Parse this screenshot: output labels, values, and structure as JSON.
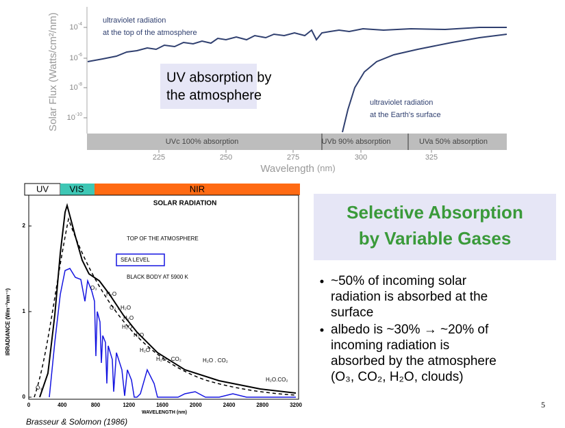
{
  "top_figure": {
    "y_axis_label": "Solar Flux (Watts/cm²/nm)",
    "y_ticks": [
      {
        "base": "10",
        "exp": "-4"
      },
      {
        "base": "10",
        "exp": "-6"
      },
      {
        "base": "10",
        "exp": "-8"
      },
      {
        "base": "10",
        "exp": "-10"
      }
    ],
    "x_ticks": [
      "225",
      "250",
      "275",
      "300",
      "325"
    ],
    "x_axis_label": "Wavelength",
    "x_axis_unit": "(nm)",
    "bands": [
      "UVc 100% absorption",
      "UVb 90% absorption",
      "UVa 50% absorption"
    ],
    "annotation_top": [
      "ultraviolet radiation",
      "at the top of the atmosphere"
    ],
    "annotation_surface": [
      "ultraviolet radiation",
      "at the Earth's surface"
    ],
    "callout": [
      "UV absorption by",
      "the atmosphere"
    ]
  },
  "bottom_figure": {
    "spectrum_bar": [
      "UV",
      "VIS",
      "NIR"
    ],
    "title": "SOLAR RADIATION",
    "y_axis_label": "IRRADIANCE (Wm⁻²nm⁻¹)",
    "y_ticks": [
      "0",
      "1",
      "2"
    ],
    "x_ticks": [
      "0",
      "400",
      "800",
      "1200",
      "1600",
      "2000",
      "2400",
      "2800",
      "3200"
    ],
    "x_axis_label": "WAVELENGTH (nm)",
    "legend": [
      "TOP OF THE ATMOSPHERE",
      "SEA LEVEL",
      "BLACK BODY AT 5900 K"
    ],
    "absorbers": [
      "O₃",
      "H₂O",
      "O₂ . H₂O",
      "H₂O",
      "H₂O",
      "H₂O",
      "H₂O",
      "H₂O . CO₂",
      "H₂O . CO₂",
      "H₂O.CO₂",
      "O₃"
    ]
  },
  "title": [
    "Selective Absorption",
    "by Variable Gases"
  ],
  "bullets": [
    [
      "~50% of incoming solar",
      "radiation is absorbed at the",
      "surface"
    ],
    [
      "albedo is ~30% → ~20% of",
      "incoming radiation is",
      "absorbed by the atmosphere",
      "(O₃, CO₂, H₂O, clouds)"
    ]
  ],
  "citation": "Brasseur & Solomon (1986)",
  "page_number": "5"
}
